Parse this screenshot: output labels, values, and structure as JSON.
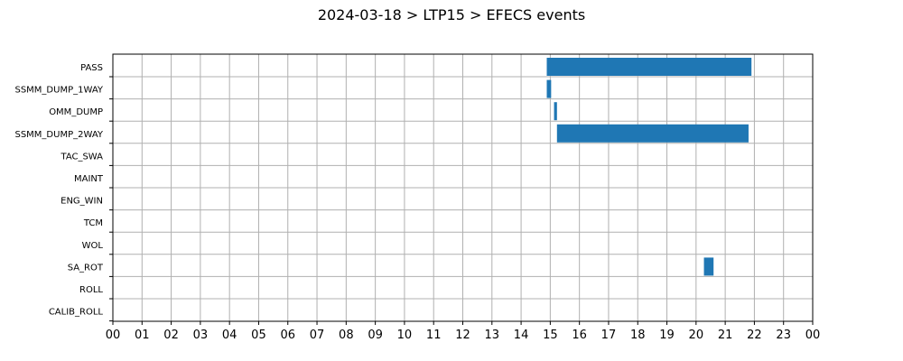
{
  "chart_data": {
    "type": "bar",
    "orientation": "horizontal",
    "title": "2024-03-18 > LTP15 > EFECS events",
    "xlabel": "",
    "ylabel": "",
    "categories": [
      "PASS",
      "SSMM_DUMP_1WAY",
      "OMM_DUMP",
      "SSMM_DUMP_2WAY",
      "TAC_SWA",
      "MAINT",
      "ENG_WIN",
      "TCM",
      "WOL",
      "SA_ROT",
      "ROLL",
      "CALIB_ROLL"
    ],
    "x_ticks": [
      "00",
      "01",
      "02",
      "03",
      "04",
      "05",
      "06",
      "07",
      "08",
      "09",
      "10",
      "11",
      "12",
      "13",
      "14",
      "15",
      "16",
      "17",
      "18",
      "19",
      "20",
      "21",
      "22",
      "23",
      "00"
    ],
    "xlim": [
      0,
      24
    ],
    "grid": true,
    "legend": "none",
    "bar_color": "#1f77b4",
    "events": [
      {
        "category": "PASS",
        "start": 14.88,
        "end": 21.9
      },
      {
        "category": "SSMM_DUMP_1WAY",
        "start": 14.88,
        "end": 15.03
      },
      {
        "category": "OMM_DUMP",
        "start": 15.13,
        "end": 15.23
      },
      {
        "category": "SSMM_DUMP_2WAY",
        "start": 15.23,
        "end": 21.8
      },
      {
        "category": "SA_ROT",
        "start": 20.27,
        "end": 20.6
      }
    ]
  }
}
